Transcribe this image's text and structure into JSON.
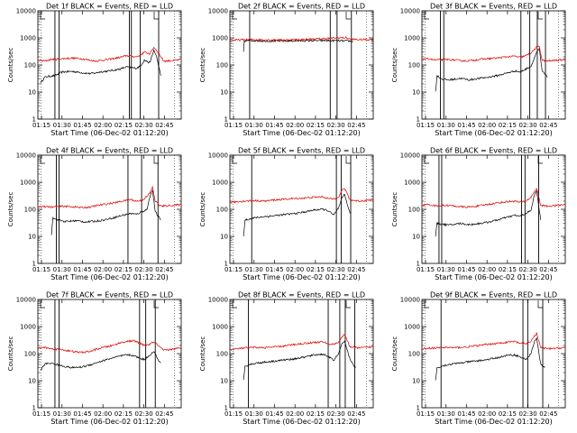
{
  "figure": {
    "y_scale": "log",
    "ylim": [
      1,
      10000
    ],
    "xlim": [
      0,
      105
    ],
    "x_unit": "minutes after 01:12:20"
  },
  "chart_data": [
    {
      "type": "line",
      "title": "Det 1f BLACK = Events, RED = LLD",
      "xlabel": "Start Time (06-Dec-02 01:12:20)",
      "ylabel": "Counts/sec",
      "xticks": [
        "01:15",
        "01:30",
        "01:45",
        "02:00",
        "02:15",
        "02:30",
        "02:45"
      ],
      "yticks": [
        "1",
        "10",
        "100",
        "1000",
        "10000"
      ],
      "series": [
        {
          "name": "Events",
          "color": "#000000",
          "x": [
            2,
            5,
            8,
            12,
            18,
            25,
            32,
            38,
            42,
            45,
            52,
            60,
            65,
            72,
            75,
            78,
            82,
            85,
            87,
            90
          ],
          "values": [
            22,
            35,
            38,
            40,
            55,
            58,
            52,
            48,
            50,
            55,
            60,
            70,
            85,
            75,
            90,
            150,
            120,
            350,
            200,
            40
          ]
        },
        {
          "name": "LLD",
          "color": "#e00000",
          "x": [
            0,
            5,
            10,
            18,
            25,
            32,
            38,
            42,
            45,
            52,
            60,
            65,
            72,
            75,
            78,
            82,
            85,
            88,
            92,
            100,
            105
          ],
          "values": [
            150,
            140,
            160,
            170,
            180,
            170,
            150,
            140,
            145,
            160,
            190,
            220,
            200,
            230,
            300,
            260,
            450,
            300,
            140,
            145,
            160
          ]
        }
      ],
      "markers_x": [
        12.5,
        15.5,
        67,
        68.5,
        75,
        88.5
      ]
    },
    {
      "type": "line",
      "title": "Det 2f BLACK = Events, RED = LLD",
      "xlabel": "Start Time (06-Dec-02 01:12:20)",
      "ylabel": "Counts/sec",
      "xticks": [
        "01:15",
        "01:30",
        "01:45",
        "02:00",
        "02:15",
        "02:30",
        "02:45"
      ],
      "yticks": [
        "1",
        "10",
        "100",
        "1000",
        "10000"
      ],
      "series": [
        {
          "name": "Events",
          "color": "#000000",
          "x": [
            10,
            10.5,
            12,
            20,
            30,
            40,
            50,
            60,
            70,
            75,
            80,
            88,
            90
          ],
          "values": [
            300,
            700,
            800,
            780,
            760,
            770,
            780,
            790,
            800,
            790,
            780,
            760,
            740
          ]
        },
        {
          "name": "LLD",
          "color": "#e00000",
          "x": [
            0,
            10,
            20,
            30,
            40,
            50,
            60,
            70,
            75,
            80,
            85,
            88,
            95,
            105
          ],
          "values": [
            820,
            850,
            860,
            850,
            840,
            860,
            900,
            950,
            980,
            1000,
            1020,
            900,
            860,
            870
          ]
        }
      ],
      "markers_x": [
        14.5,
        73.5,
        78.5,
        89
      ]
    },
    {
      "type": "line",
      "title": "Det 3f BLACK = Events, RED = LLD",
      "xlabel": "Start Time (06-Dec-02 01:12:20)",
      "ylabel": "Counts/sec",
      "xticks": [
        "01:15",
        "01:30",
        "01:45",
        "02:00",
        "02:15",
        "02:30",
        "02:45"
      ],
      "yticks": [
        "1",
        "10",
        "100",
        "1000",
        "10000"
      ],
      "series": [
        {
          "name": "Events",
          "color": "#000000",
          "x": [
            10,
            11,
            15,
            20,
            28,
            35,
            42,
            48,
            55,
            62,
            68,
            72,
            76,
            80,
            84,
            86,
            88,
            92
          ],
          "values": [
            10,
            40,
            30,
            28,
            32,
            28,
            32,
            35,
            40,
            50,
            60,
            55,
            70,
            90,
            300,
            380,
            60,
            35
          ]
        },
        {
          "name": "LLD",
          "color": "#e00000",
          "x": [
            0,
            5,
            10,
            18,
            25,
            32,
            38,
            42,
            48,
            55,
            62,
            68,
            72,
            76,
            80,
            84,
            86,
            88,
            92,
            100,
            105
          ],
          "values": [
            160,
            170,
            150,
            160,
            150,
            140,
            150,
            160,
            170,
            180,
            200,
            210,
            190,
            220,
            280,
            450,
            500,
            150,
            140,
            150,
            160
          ]
        }
      ],
      "markers_x": [
        13.5,
        16,
        72.5,
        79,
        84.5,
        90.5
      ]
    },
    {
      "type": "line",
      "title": "Det 4f BLACK = Events, RED = LLD",
      "xlabel": "Start Time (06-Dec-02 01:12:20)",
      "ylabel": "Counts/sec",
      "xticks": [
        "01:15",
        "01:30",
        "01:45",
        "02:00",
        "02:15",
        "02:30",
        "02:45"
      ],
      "yticks": [
        "1",
        "10",
        "100",
        "1000",
        "10000"
      ],
      "series": [
        {
          "name": "Events",
          "color": "#000000",
          "x": [
            10,
            11,
            15,
            20,
            28,
            35,
            42,
            48,
            55,
            62,
            68,
            72,
            76,
            80,
            82,
            84,
            86,
            90
          ],
          "values": [
            12,
            50,
            40,
            35,
            38,
            34,
            36,
            40,
            48,
            60,
            70,
            65,
            80,
            100,
            300,
            500,
            80,
            40
          ]
        },
        {
          "name": "LLD",
          "color": "#e00000",
          "x": [
            0,
            5,
            10,
            18,
            25,
            32,
            38,
            42,
            48,
            55,
            62,
            68,
            72,
            76,
            80,
            82,
            84,
            86,
            90,
            100,
            105
          ],
          "values": [
            120,
            130,
            120,
            130,
            125,
            115,
            120,
            135,
            150,
            170,
            200,
            230,
            200,
            210,
            300,
            400,
            650,
            200,
            130,
            140,
            150
          ]
        }
      ],
      "markers_x": [
        13.5,
        15.5,
        66,
        76,
        88
      ]
    },
    {
      "type": "line",
      "title": "Det 5f BLACK = Events, RED = LLD",
      "xlabel": "Start Time (06-Dec-02 01:12:20)",
      "ylabel": "Counts/sec",
      "xticks": [
        "01:15",
        "01:30",
        "01:45",
        "02:00",
        "02:15",
        "02:30",
        "02:45"
      ],
      "yticks": [
        "1",
        "10",
        "100",
        "1000",
        "10000"
      ],
      "series": [
        {
          "name": "Events",
          "color": "#000000",
          "x": [
            10,
            11,
            15,
            20,
            28,
            35,
            42,
            48,
            55,
            62,
            68,
            72,
            76,
            80,
            82,
            84,
            88
          ],
          "values": [
            10,
            40,
            45,
            50,
            55,
            60,
            65,
            70,
            80,
            95,
            100,
            90,
            60,
            120,
            250,
            350,
            70
          ]
        },
        {
          "name": "LLD",
          "color": "#e00000",
          "x": [
            0,
            5,
            10,
            18,
            25,
            32,
            38,
            42,
            48,
            55,
            62,
            68,
            72,
            76,
            80,
            82,
            84,
            88,
            95,
            105
          ],
          "values": [
            180,
            190,
            200,
            210,
            200,
            220,
            230,
            240,
            250,
            260,
            280,
            290,
            250,
            240,
            300,
            500,
            600,
            220,
            200,
            230
          ]
        }
      ],
      "markers_x": [
        16,
        78,
        81.5,
        88.5
      ]
    },
    {
      "type": "line",
      "title": "Det 6f BLACK = Events, RED = LLD",
      "xlabel": "Start Time (06-Dec-02 01:12:20)",
      "ylabel": "Counts/sec",
      "xticks": [
        "01:15",
        "01:30",
        "01:45",
        "02:00",
        "02:15",
        "02:30",
        "02:45"
      ],
      "yticks": [
        "1",
        "10",
        "100",
        "1000",
        "10000"
      ],
      "series": [
        {
          "name": "Events",
          "color": "#000000",
          "x": [
            10,
            11,
            15,
            20,
            28,
            35,
            42,
            48,
            55,
            62,
            68,
            72,
            76,
            80,
            82,
            84,
            87
          ],
          "values": [
            10,
            30,
            28,
            26,
            30,
            27,
            30,
            33,
            40,
            50,
            60,
            55,
            70,
            90,
            300,
            500,
            40
          ]
        },
        {
          "name": "LLD",
          "color": "#e00000",
          "x": [
            0,
            5,
            10,
            18,
            25,
            32,
            38,
            42,
            48,
            55,
            62,
            68,
            72,
            76,
            80,
            82,
            84,
            87,
            92,
            100,
            105
          ],
          "values": [
            140,
            150,
            135,
            140,
            130,
            120,
            125,
            135,
            150,
            170,
            190,
            200,
            180,
            200,
            280,
            420,
            600,
            140,
            130,
            140,
            150
          ]
        }
      ],
      "markers_x": [
        12.5,
        14.5,
        73,
        75.5,
        85.5
      ]
    },
    {
      "type": "line",
      "title": "Det 7f BLACK = Events, RED = LLD",
      "xlabel": "Start Time (06-Dec-02 01:12:20)",
      "ylabel": "Counts/sec",
      "xticks": [
        "01:15",
        "01:30",
        "01:45",
        "02:00",
        "02:15",
        "02:30",
        "02:45"
      ],
      "yticks": [
        "1",
        "10",
        "100",
        "1000",
        "10000"
      ],
      "series": [
        {
          "name": "Events",
          "color": "#000000",
          "x": [
            2,
            5,
            8,
            12,
            18,
            25,
            32,
            38,
            42,
            48,
            55,
            60,
            65,
            70,
            74,
            78,
            82,
            85,
            88,
            90
          ],
          "values": [
            25,
            40,
            45,
            42,
            35,
            30,
            32,
            38,
            45,
            55,
            70,
            80,
            90,
            85,
            70,
            60,
            90,
            120,
            60,
            45
          ]
        },
        {
          "name": "LLD",
          "color": "#e00000",
          "x": [
            0,
            5,
            10,
            18,
            25,
            32,
            38,
            42,
            48,
            55,
            60,
            65,
            70,
            74,
            78,
            82,
            85,
            88,
            92,
            100,
            105
          ],
          "values": [
            160,
            170,
            150,
            140,
            120,
            110,
            120,
            140,
            170,
            200,
            250,
            280,
            300,
            250,
            200,
            220,
            270,
            200,
            130,
            150,
            160
          ]
        }
      ],
      "markers_x": [
        12.5,
        15.5,
        74.5,
        79,
        86
      ]
    },
    {
      "type": "line",
      "title": "Det 8f BLACK = Events, RED = LLD",
      "xlabel": "Start Time (06-Dec-02 01:12:20)",
      "ylabel": "Counts/sec",
      "xticks": [
        "01:15",
        "01:30",
        "01:45",
        "02:00",
        "02:15",
        "02:30",
        "02:45"
      ],
      "yticks": [
        "1",
        "10",
        "100",
        "1000",
        "10000"
      ],
      "series": [
        {
          "name": "Events",
          "color": "#000000",
          "x": [
            10,
            11,
            15,
            20,
            28,
            35,
            42,
            48,
            55,
            62,
            68,
            72,
            76,
            80,
            82,
            84,
            88,
            92
          ],
          "values": [
            10,
            35,
            40,
            45,
            50,
            55,
            60,
            65,
            75,
            90,
            95,
            80,
            55,
            110,
            220,
            300,
            60,
            30
          ]
        },
        {
          "name": "LLD",
          "color": "#e00000",
          "x": [
            0,
            5,
            10,
            18,
            25,
            32,
            38,
            42,
            48,
            55,
            62,
            68,
            72,
            76,
            80,
            82,
            84,
            88,
            95,
            105
          ],
          "values": [
            140,
            150,
            160,
            170,
            165,
            175,
            185,
            200,
            220,
            240,
            260,
            270,
            230,
            220,
            280,
            400,
            500,
            180,
            160,
            180
          ]
        }
      ],
      "markers_x": [
        13.5,
        72,
        80.5,
        84.5,
        91.5
      ]
    },
    {
      "type": "line",
      "title": "Det 9f BLACK = Events, RED = LLD",
      "xlabel": "Start Time (06-Dec-02 01:12:20)",
      "ylabel": "Counts/sec",
      "xticks": [
        "01:15",
        "01:30",
        "01:45",
        "02:00",
        "02:15",
        "02:30",
        "02:45"
      ],
      "yticks": [
        "1",
        "10",
        "100",
        "1000",
        "10000"
      ],
      "series": [
        {
          "name": "Events",
          "color": "#000000",
          "x": [
            10,
            11,
            15,
            20,
            28,
            35,
            42,
            48,
            55,
            62,
            68,
            72,
            76,
            80,
            82,
            84,
            87,
            90
          ],
          "values": [
            10,
            30,
            35,
            40,
            45,
            50,
            55,
            60,
            70,
            85,
            90,
            75,
            60,
            100,
            250,
            380,
            40,
            30
          ]
        },
        {
          "name": "LLD",
          "color": "#e00000",
          "x": [
            0,
            5,
            10,
            18,
            25,
            32,
            38,
            42,
            48,
            55,
            62,
            68,
            72,
            76,
            80,
            82,
            84,
            87,
            92,
            100,
            105
          ],
          "values": [
            150,
            160,
            160,
            170,
            165,
            175,
            190,
            200,
            220,
            240,
            260,
            280,
            240,
            230,
            290,
            420,
            550,
            170,
            150,
            160,
            170
          ]
        }
      ],
      "markers_x": [
        14,
        74,
        77.5,
        88.5
      ]
    }
  ]
}
